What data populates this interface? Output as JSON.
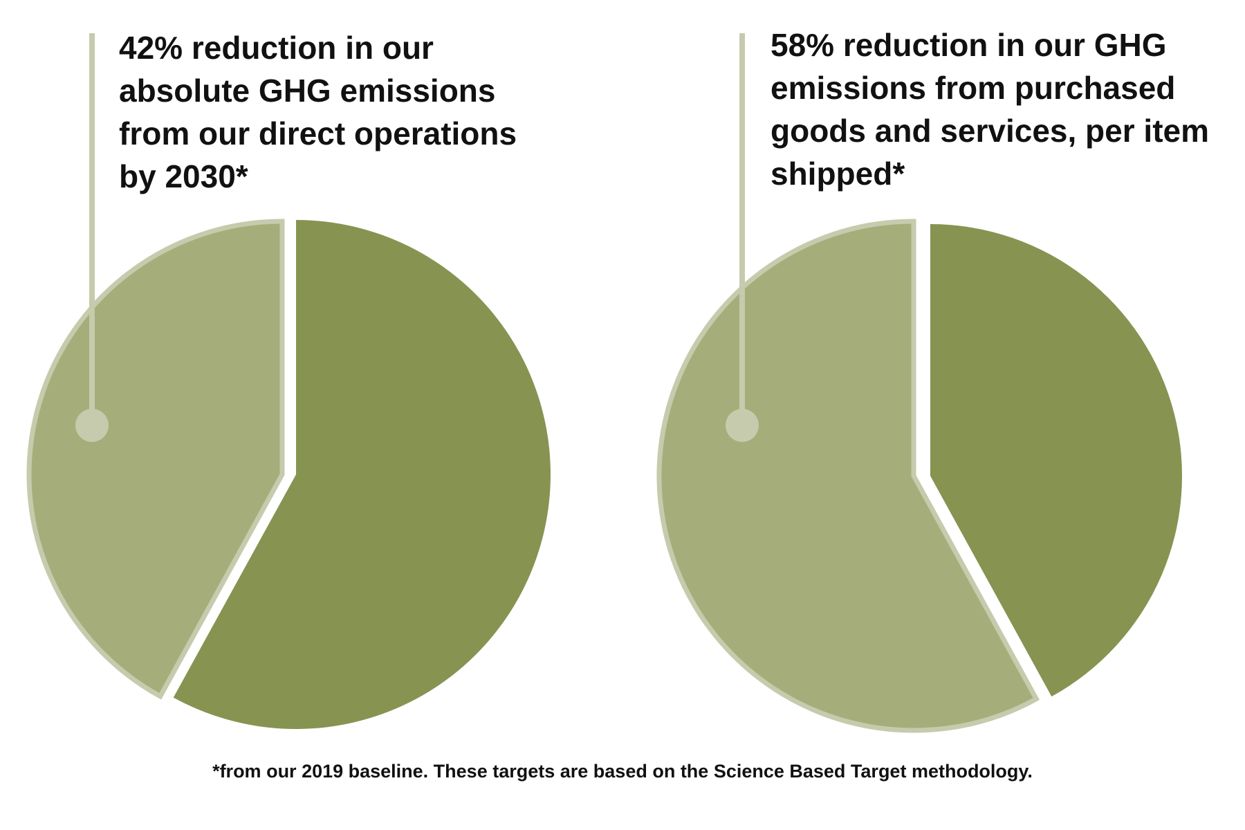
{
  "chart_data": [
    {
      "type": "pie",
      "title": "42% reduction in our absolute GHG emissions from our direct operations by 2030*",
      "slices": [
        {
          "label": "",
          "value": 42,
          "color": "#a5ae7a"
        },
        {
          "label": "",
          "value": 58,
          "color": "#879351"
        }
      ]
    },
    {
      "type": "pie",
      "title": "58% reduction in our GHG emissions from purchased goods and services, per item shipped*",
      "slices": [
        {
          "label": "",
          "value": 58,
          "color": "#a5ae7a"
        },
        {
          "label": "",
          "value": 42,
          "color": "#879351"
        }
      ]
    }
  ],
  "footnote": "*from our 2019 baseline. These targets are based on the Science Based Target methodology.",
  "colors": {
    "reduction": "#a5ae7a",
    "remaining": "#879351",
    "outline": "#c5cbac",
    "callout": "#c5cbac",
    "text": "#111111"
  }
}
